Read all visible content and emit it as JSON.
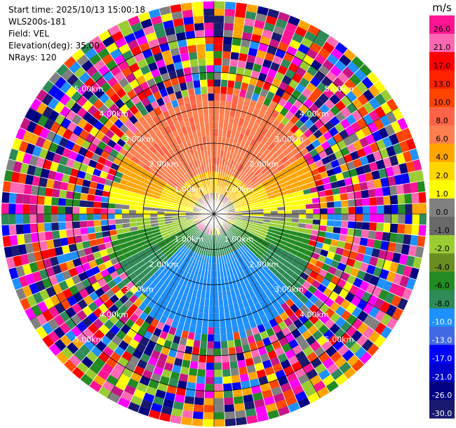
{
  "info": {
    "start_time": "Start time: 2025/10/13 15:00:18",
    "site": "WLS200s-181",
    "field": "Field: VEL",
    "elevation": "Elevation(deg): 35.00",
    "nrays": "NRays: 120"
  },
  "chart_data": {
    "type": "heatmap",
    "projection": "polar-ppi",
    "field": "VEL",
    "elevation_deg": 35.0,
    "n_rays": 120,
    "max_range_km": 6,
    "range_ring_labels": [
      {
        "text": "1.00km",
        "range_km": 1
      },
      {
        "text": "2.00km",
        "range_km": 2
      },
      {
        "text": "3.00km",
        "range_km": 3
      },
      {
        "text": "4.00km",
        "range_km": 4
      },
      {
        "text": "5.00km",
        "range_km": 5
      }
    ],
    "pattern": {
      "near_range_clutter": [
        0,
        0.6
      ],
      "clean_signal_to_km": 3.0,
      "noise_beyond_km": 3.0,
      "north_sector": "approaching/receding positive ~ +8 to +13 m/s",
      "south_sector": "negative ~ -6 to -10 m/s"
    },
    "colorbar": {
      "unit": "m/s",
      "tick_labels": [
        "26.0",
        "21.0",
        "17.0",
        "13.0",
        "10.0",
        "8.0",
        "6.0",
        "4.0",
        "2.0",
        "1.0",
        "0.0",
        "-1.0",
        "-2.0",
        "-4.0",
        "-6.0",
        "-8.0",
        "-10.0",
        "-13.0",
        "-17.0",
        "-21.0",
        "-26.0",
        "-30.0"
      ],
      "colors": [
        "#ff1493",
        "#ff69b4",
        "#ff0000",
        "#ff2400",
        "#ff4500",
        "#ff6347",
        "#ff7f50",
        "#ffa500",
        "#ffd700",
        "#ffff00",
        "#808080",
        "#696969",
        "#9acd32",
        "#6b8e23",
        "#228b22",
        "#2e8b57",
        "#1e90ff",
        "#4169e1",
        "#0000ff",
        "#0000cd",
        "#000080",
        "#191970"
      ]
    }
  }
}
